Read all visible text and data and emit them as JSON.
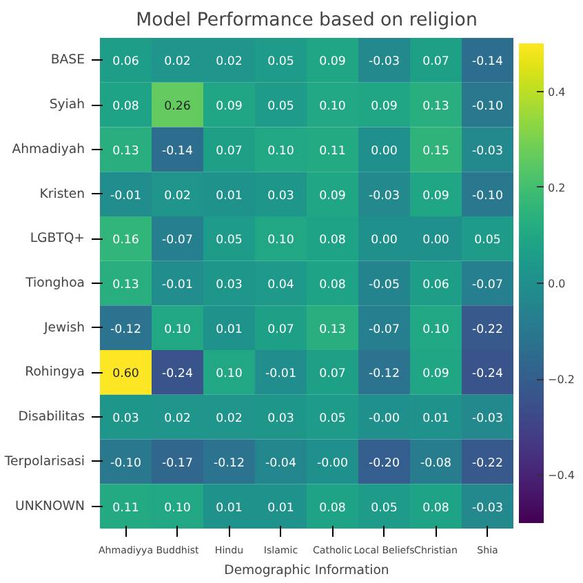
{
  "chart_data": {
    "type": "heatmap",
    "title": "Model Performance based on religion",
    "xlabel": "Demographic Information",
    "categories": [
      "Ahmadiyya",
      "Buddhist",
      "Hindu",
      "Islamic",
      "Catholic",
      "Local Beliefs",
      "Christian",
      "Shia"
    ],
    "y_categories": [
      "BASE",
      "Syiah",
      "Ahmadiyah",
      "Kristen",
      "LGBTQ+",
      "Tionghoa",
      "Jewish",
      "Rohingya",
      "Disabilitas",
      "Terpolarisasi",
      "UNKNOWN"
    ],
    "cells": [
      [
        0.06,
        0.02,
        0.02,
        0.05,
        0.09,
        -0.03,
        0.07,
        -0.14
      ],
      [
        0.08,
        0.26,
        0.09,
        0.05,
        0.1,
        0.09,
        0.13,
        -0.1
      ],
      [
        0.13,
        -0.14,
        0.07,
        0.1,
        0.11,
        0.0,
        0.15,
        -0.03
      ],
      [
        -0.01,
        0.02,
        0.01,
        0.03,
        0.09,
        -0.03,
        0.09,
        -0.1
      ],
      [
        0.16,
        -0.07,
        0.05,
        0.1,
        0.08,
        0.0,
        0.0,
        0.05
      ],
      [
        0.13,
        -0.01,
        0.03,
        0.04,
        0.08,
        -0.05,
        0.06,
        -0.07
      ],
      [
        -0.12,
        0.1,
        0.01,
        0.07,
        0.13,
        -0.07,
        0.1,
        -0.22
      ],
      [
        0.6,
        -0.24,
        0.1,
        -0.01,
        0.07,
        -0.12,
        0.09,
        -0.24
      ],
      [
        0.03,
        0.02,
        0.02,
        0.03,
        0.05,
        -0.0,
        0.01,
        -0.03
      ],
      [
        -0.1,
        -0.17,
        -0.12,
        -0.04,
        -0.0,
        -0.2,
        -0.08,
        -0.22
      ],
      [
        0.11,
        0.1,
        0.01,
        0.01,
        0.08,
        0.05,
        0.08,
        -0.03
      ]
    ],
    "cell_labels": [
      [
        "0.06",
        "0.02",
        "0.02",
        "0.05",
        "0.09",
        "-0.03",
        "0.07",
        "-0.14"
      ],
      [
        "0.08",
        "0.26",
        "0.09",
        "0.05",
        "0.10",
        "0.09",
        "0.13",
        "-0.10"
      ],
      [
        "0.13",
        "-0.14",
        "0.07",
        "0.10",
        "0.11",
        "0.00",
        "0.15",
        "-0.03"
      ],
      [
        "-0.01",
        "0.02",
        "0.01",
        "0.03",
        "0.09",
        "-0.03",
        "0.09",
        "-0.10"
      ],
      [
        "0.16",
        "-0.07",
        "0.05",
        "0.10",
        "0.08",
        "0.00",
        "0.00",
        "0.05"
      ],
      [
        "0.13",
        "-0.01",
        "0.03",
        "0.04",
        "0.08",
        "-0.05",
        "0.06",
        "-0.07"
      ],
      [
        "-0.12",
        "0.10",
        "0.01",
        "0.07",
        "0.13",
        "-0.07",
        "0.10",
        "-0.22"
      ],
      [
        "0.60",
        "-0.24",
        "0.10",
        "-0.01",
        "0.07",
        "-0.12",
        "0.09",
        "-0.24"
      ],
      [
        "0.03",
        "0.02",
        "0.02",
        "0.03",
        "0.05",
        "-0.00",
        "0.01",
        "-0.03"
      ],
      [
        "-0.10",
        "-0.17",
        "-0.12",
        "-0.04",
        "-0.00",
        "-0.20",
        "-0.08",
        "-0.22"
      ],
      [
        "0.11",
        "0.10",
        "0.01",
        "0.01",
        "0.08",
        "0.05",
        "0.08",
        "-0.03"
      ]
    ],
    "clim": [
      -0.5,
      0.5
    ],
    "cticks": [
      {
        "value": -0.4,
        "label": "−0.4"
      },
      {
        "value": -0.2,
        "label": "−0.2"
      },
      {
        "value": 0.0,
        "label": "0.0"
      },
      {
        "value": 0.2,
        "label": "0.2"
      },
      {
        "value": 0.4,
        "label": "0.4"
      }
    ]
  }
}
